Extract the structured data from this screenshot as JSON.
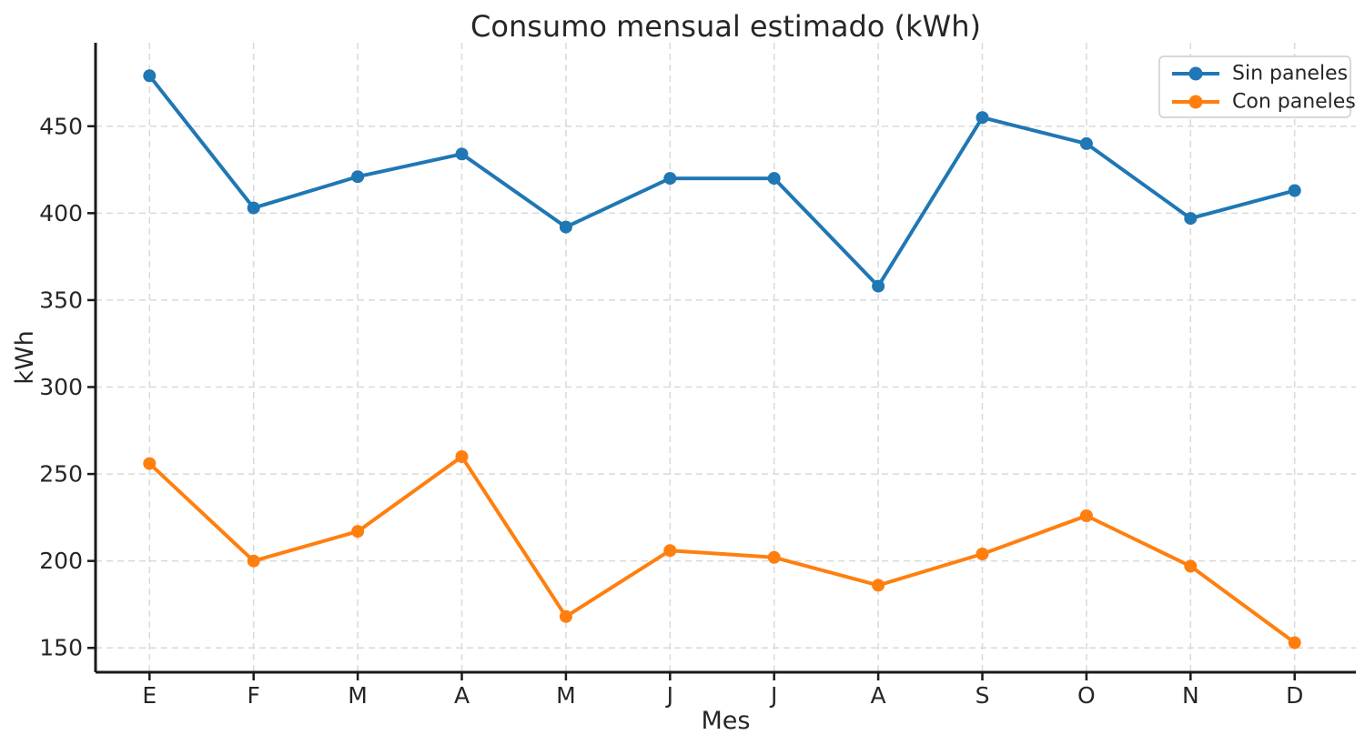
{
  "page_title": "Consumo mensual estimado (kWh)",
  "chart_data": {
    "type": "line",
    "title": "Consumo mensual estimado (kWh)",
    "xlabel": "Mes",
    "ylabel": "kWh",
    "categories": [
      "E",
      "F",
      "M",
      "A",
      "M",
      "J",
      "J",
      "A",
      "S",
      "O",
      "N",
      "D"
    ],
    "series": [
      {
        "name": "Sin paneles",
        "color": "#1f77b4",
        "marker": "circle",
        "values": [
          479,
          403,
          421,
          434,
          392,
          420,
          420,
          358,
          455,
          440,
          397,
          413
        ]
      },
      {
        "name": "Con paneles",
        "color": "#ff7f0e",
        "marker": "circle",
        "values": [
          256,
          200,
          217,
          260,
          168,
          206,
          202,
          186,
          204,
          226,
          197,
          153
        ]
      }
    ],
    "yticks": [
      150,
      200,
      250,
      300,
      350,
      400,
      450
    ],
    "ylim": [
      136,
      498
    ],
    "grid": true,
    "grid_style": "dashed",
    "legend_position": "upper right"
  },
  "style": {
    "background": "#ffffff",
    "grid_color": "#d9d9d9",
    "axis_color": "#1a1a1a",
    "text_color": "#262626",
    "legend_border": "#cccccc"
  }
}
